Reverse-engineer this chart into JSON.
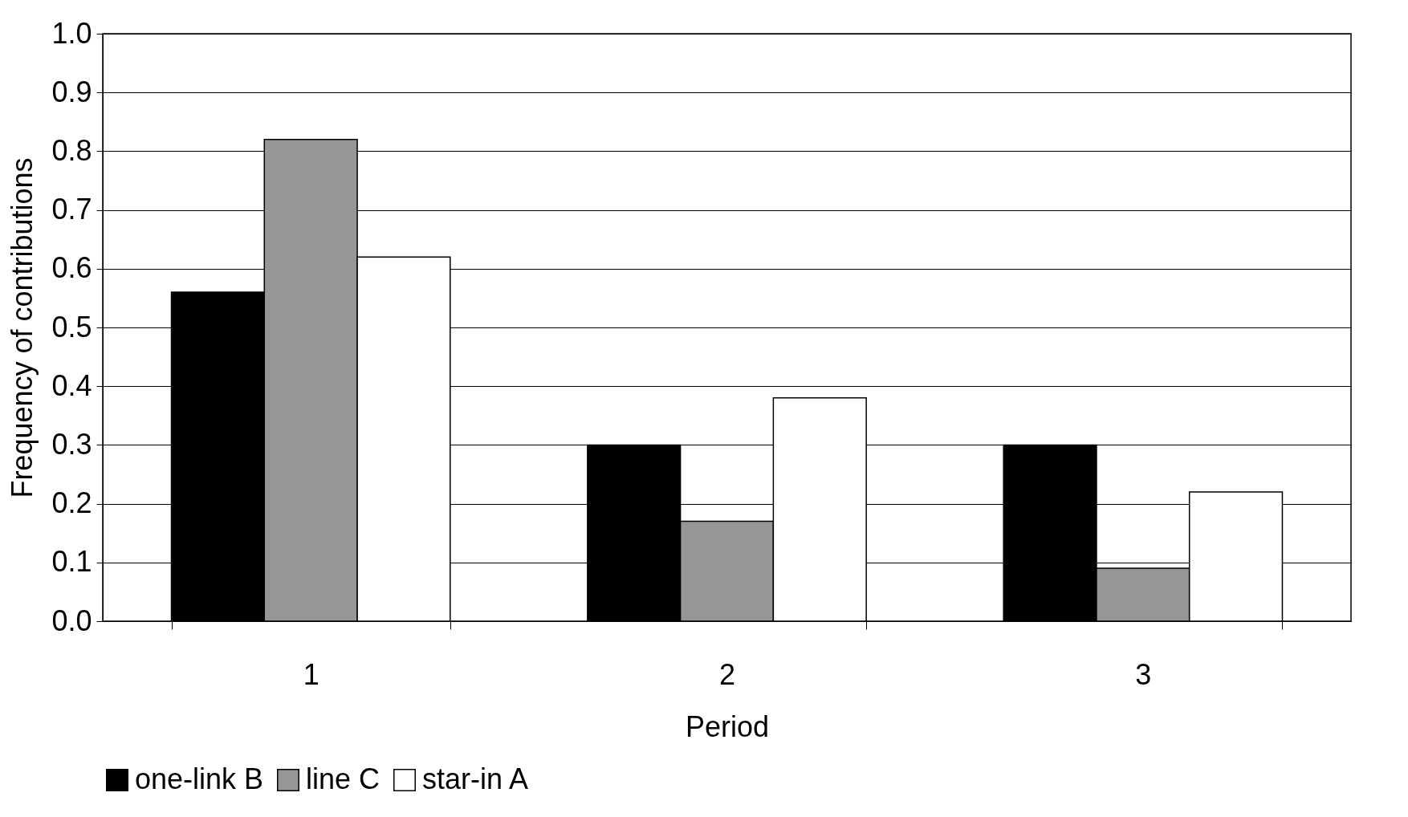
{
  "chart_data": {
    "type": "bar",
    "xlabel": "Period",
    "ylabel": "Frequency of contributions",
    "categories": [
      "1",
      "2",
      "3"
    ],
    "series": [
      {
        "name": "one-link B",
        "color": "#000000",
        "values": [
          0.56,
          0.3,
          0.3
        ]
      },
      {
        "name": "line C",
        "color": "#969696",
        "values": [
          0.82,
          0.17,
          0.09
        ]
      },
      {
        "name": "star-in A",
        "color": "#ffffff",
        "values": [
          0.62,
          0.38,
          0.22
        ]
      }
    ],
    "ylim": [
      0,
      1
    ],
    "yticks": [
      {
        "value": 0,
        "label": "0.0"
      },
      {
        "value": 0.1,
        "label": "0.1"
      },
      {
        "value": 0.2,
        "label": "0.2"
      },
      {
        "value": 0.3,
        "label": "0.3"
      },
      {
        "value": 0.4,
        "label": "0.4"
      },
      {
        "value": 0.5,
        "label": "0.5"
      },
      {
        "value": 0.6,
        "label": "0.6"
      },
      {
        "value": 0.7,
        "label": "0.7"
      },
      {
        "value": 0.8,
        "label": "0.8"
      },
      {
        "value": 0.9,
        "label": "0.9"
      },
      {
        "value": 1,
        "label": "1.0"
      }
    ],
    "grid": "y",
    "legend": "bottom"
  }
}
